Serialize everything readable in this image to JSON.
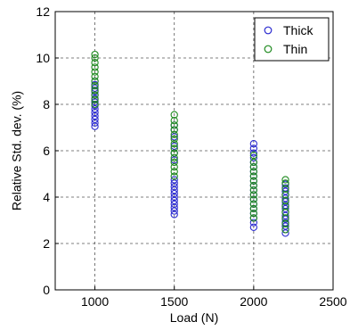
{
  "chart_data": {
    "type": "scatter",
    "xlabel": "Load (N)",
    "ylabel": "Relative Std. dev. (%)",
    "xlim": [
      750,
      2500
    ],
    "ylim": [
      0,
      12
    ],
    "xticks": [
      1000,
      1500,
      2000,
      2500
    ],
    "yticks": [
      0,
      2,
      4,
      6,
      8,
      10,
      12
    ],
    "grid": true,
    "legend_position": "top-right",
    "series": [
      {
        "name": "Thick",
        "color": "#2b2bd0",
        "marker": "open-circle",
        "points": [
          {
            "x": 1000,
            "y": 7.05
          },
          {
            "x": 1000,
            "y": 7.2
          },
          {
            "x": 1000,
            "y": 7.35
          },
          {
            "x": 1000,
            "y": 7.5
          },
          {
            "x": 1000,
            "y": 7.65
          },
          {
            "x": 1000,
            "y": 7.8
          },
          {
            "x": 1000,
            "y": 7.95
          },
          {
            "x": 1000,
            "y": 8.1
          },
          {
            "x": 1000,
            "y": 8.25
          },
          {
            "x": 1000,
            "y": 8.4
          },
          {
            "x": 1000,
            "y": 8.55
          },
          {
            "x": 1000,
            "y": 8.7
          },
          {
            "x": 1000,
            "y": 8.85
          },
          {
            "x": 1000,
            "y": 9.0
          },
          {
            "x": 1500,
            "y": 3.25
          },
          {
            "x": 1500,
            "y": 3.4
          },
          {
            "x": 1500,
            "y": 3.55
          },
          {
            "x": 1500,
            "y": 3.7
          },
          {
            "x": 1500,
            "y": 3.85
          },
          {
            "x": 1500,
            "y": 4.0
          },
          {
            "x": 1500,
            "y": 4.15
          },
          {
            "x": 1500,
            "y": 4.3
          },
          {
            "x": 1500,
            "y": 4.45
          },
          {
            "x": 1500,
            "y": 4.6
          },
          {
            "x": 1500,
            "y": 4.75
          },
          {
            "x": 1500,
            "y": 5.6
          },
          {
            "x": 1500,
            "y": 5.9
          },
          {
            "x": 1500,
            "y": 6.2
          },
          {
            "x": 1500,
            "y": 6.6
          },
          {
            "x": 1500,
            "y": 6.9
          },
          {
            "x": 1500,
            "y": 7.1
          },
          {
            "x": 2000,
            "y": 2.7
          },
          {
            "x": 2000,
            "y": 2.9
          },
          {
            "x": 2000,
            "y": 3.1
          },
          {
            "x": 2000,
            "y": 3.3
          },
          {
            "x": 2000,
            "y": 3.5
          },
          {
            "x": 2000,
            "y": 3.7
          },
          {
            "x": 2000,
            "y": 3.9
          },
          {
            "x": 2000,
            "y": 4.1
          },
          {
            "x": 2000,
            "y": 4.3
          },
          {
            "x": 2000,
            "y": 4.5
          },
          {
            "x": 2000,
            "y": 4.7
          },
          {
            "x": 2000,
            "y": 4.9
          },
          {
            "x": 2000,
            "y": 5.1
          },
          {
            "x": 2000,
            "y": 5.3
          },
          {
            "x": 2000,
            "y": 5.5
          },
          {
            "x": 2000,
            "y": 5.7
          },
          {
            "x": 2000,
            "y": 5.9
          },
          {
            "x": 2000,
            "y": 6.1
          },
          {
            "x": 2000,
            "y": 6.3
          },
          {
            "x": 2200,
            "y": 2.45
          },
          {
            "x": 2200,
            "y": 2.6
          },
          {
            "x": 2200,
            "y": 2.75
          },
          {
            "x": 2200,
            "y": 2.9
          },
          {
            "x": 2200,
            "y": 3.05
          },
          {
            "x": 2200,
            "y": 3.2
          },
          {
            "x": 2200,
            "y": 3.35
          },
          {
            "x": 2200,
            "y": 3.5
          },
          {
            "x": 2200,
            "y": 3.65
          },
          {
            "x": 2200,
            "y": 3.8
          },
          {
            "x": 2200,
            "y": 3.95
          },
          {
            "x": 2200,
            "y": 4.1
          },
          {
            "x": 2200,
            "y": 4.25
          },
          {
            "x": 2200,
            "y": 4.4
          },
          {
            "x": 2200,
            "y": 4.55
          }
        ]
      },
      {
        "name": "Thin",
        "color": "#1f8a1f",
        "marker": "open-circle",
        "points": [
          {
            "x": 1000,
            "y": 8.0
          },
          {
            "x": 1000,
            "y": 8.2
          },
          {
            "x": 1000,
            "y": 8.4
          },
          {
            "x": 1000,
            "y": 8.6
          },
          {
            "x": 1000,
            "y": 8.8
          },
          {
            "x": 1000,
            "y": 9.0
          },
          {
            "x": 1000,
            "y": 9.2
          },
          {
            "x": 1000,
            "y": 9.4
          },
          {
            "x": 1000,
            "y": 9.6
          },
          {
            "x": 1000,
            "y": 9.8
          },
          {
            "x": 1000,
            "y": 10.0
          },
          {
            "x": 1000,
            "y": 10.15
          },
          {
            "x": 1500,
            "y": 4.9
          },
          {
            "x": 1500,
            "y": 5.1
          },
          {
            "x": 1500,
            "y": 5.3
          },
          {
            "x": 1500,
            "y": 5.5
          },
          {
            "x": 1500,
            "y": 5.7
          },
          {
            "x": 1500,
            "y": 5.9
          },
          {
            "x": 1500,
            "y": 6.1
          },
          {
            "x": 1500,
            "y": 6.3
          },
          {
            "x": 1500,
            "y": 6.5
          },
          {
            "x": 1500,
            "y": 6.7
          },
          {
            "x": 1500,
            "y": 6.9
          },
          {
            "x": 1500,
            "y": 7.1
          },
          {
            "x": 1500,
            "y": 7.3
          },
          {
            "x": 1500,
            "y": 7.55
          },
          {
            "x": 2000,
            "y": 3.1
          },
          {
            "x": 2000,
            "y": 3.3
          },
          {
            "x": 2000,
            "y": 3.5
          },
          {
            "x": 2000,
            "y": 3.7
          },
          {
            "x": 2000,
            "y": 3.9
          },
          {
            "x": 2000,
            "y": 4.1
          },
          {
            "x": 2000,
            "y": 4.3
          },
          {
            "x": 2000,
            "y": 4.5
          },
          {
            "x": 2000,
            "y": 4.7
          },
          {
            "x": 2000,
            "y": 4.9
          },
          {
            "x": 2000,
            "y": 5.1
          },
          {
            "x": 2000,
            "y": 5.3
          },
          {
            "x": 2000,
            "y": 5.5
          },
          {
            "x": 2000,
            "y": 5.8
          },
          {
            "x": 2200,
            "y": 2.6
          },
          {
            "x": 2200,
            "y": 2.85
          },
          {
            "x": 2200,
            "y": 3.1
          },
          {
            "x": 2200,
            "y": 3.35
          },
          {
            "x": 2200,
            "y": 3.6
          },
          {
            "x": 2200,
            "y": 3.85
          },
          {
            "x": 2200,
            "y": 4.1
          },
          {
            "x": 2200,
            "y": 4.35
          },
          {
            "x": 2200,
            "y": 4.6
          },
          {
            "x": 2200,
            "y": 4.75
          }
        ]
      }
    ]
  }
}
